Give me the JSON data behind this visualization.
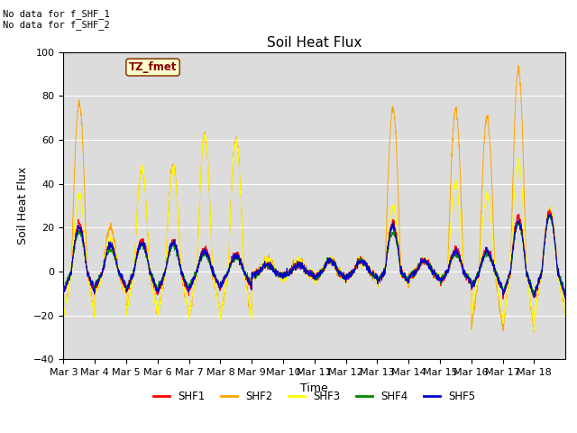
{
  "title": "Soil Heat Flux",
  "ylabel": "Soil Heat Flux",
  "xlabel": "Time",
  "ylim": [
    -40,
    100
  ],
  "yticks": [
    -40,
    -20,
    0,
    20,
    40,
    60,
    80,
    100
  ],
  "colors": {
    "SHF1": "#ff0000",
    "SHF2": "#ffa500",
    "SHF3": "#ffff00",
    "SHF4": "#008800",
    "SHF5": "#0000cc"
  },
  "legend_labels": [
    "SHF1",
    "SHF2",
    "SHF3",
    "SHF4",
    "SHF5"
  ],
  "annotation_text": "No data for f_SHF_1\nNo data for f_SHF_2",
  "tz_label": "TZ_fmet",
  "background_color": "#dcdcdc",
  "n_days": 16,
  "start_day": 3,
  "points_per_day": 144,
  "title_fontsize": 11,
  "axis_label_fontsize": 9,
  "tick_label_fontsize": 8,
  "shf2_day_peaks": [
    77,
    20,
    47,
    48,
    62,
    60,
    5,
    5,
    5,
    5,
    74,
    5,
    74,
    70,
    92,
    28
  ],
  "shf3_day_peaks": [
    35,
    15,
    47,
    47,
    62,
    59,
    5,
    5,
    5,
    5,
    30,
    5,
    40,
    35,
    50,
    27
  ],
  "shf1_day_peaks": [
    22,
    12,
    14,
    14,
    10,
    8,
    3,
    3,
    5,
    5,
    22,
    5,
    10,
    10,
    25,
    27
  ],
  "shf4_day_peaks": [
    18,
    10,
    12,
    12,
    8,
    6,
    3,
    3,
    5,
    5,
    18,
    5,
    8,
    8,
    22,
    25
  ],
  "shf5_day_peaks": [
    20,
    12,
    13,
    13,
    9,
    7,
    3,
    3,
    5,
    5,
    20,
    5,
    9,
    9,
    23,
    26
  ],
  "shf2_night_vals": [
    -21,
    -10,
    -19,
    -20,
    -20,
    -21,
    -3,
    -3,
    -3,
    -3,
    -5,
    -3,
    -5,
    -26,
    -26,
    -20
  ],
  "shf3_night_vals": [
    -21,
    -10,
    -19,
    -20,
    -20,
    -21,
    -3,
    -3,
    -3,
    -3,
    -5,
    -3,
    -5,
    -20,
    -25,
    -20
  ],
  "shf1_night_vals": [
    -10,
    -8,
    -10,
    -10,
    -8,
    -7,
    -2,
    -2,
    -3,
    -3,
    -5,
    -3,
    -5,
    -8,
    -12,
    -12
  ],
  "shf4_night_vals": [
    -8,
    -6,
    -8,
    -8,
    -7,
    -6,
    -2,
    -2,
    -3,
    -3,
    -4,
    -3,
    -4,
    -7,
    -10,
    -10
  ],
  "shf5_night_vals": [
    -9,
    -7,
    -9,
    -9,
    -8,
    -7,
    -2,
    -2,
    -3,
    -3,
    -5,
    -3,
    -5,
    -8,
    -11,
    -11
  ]
}
